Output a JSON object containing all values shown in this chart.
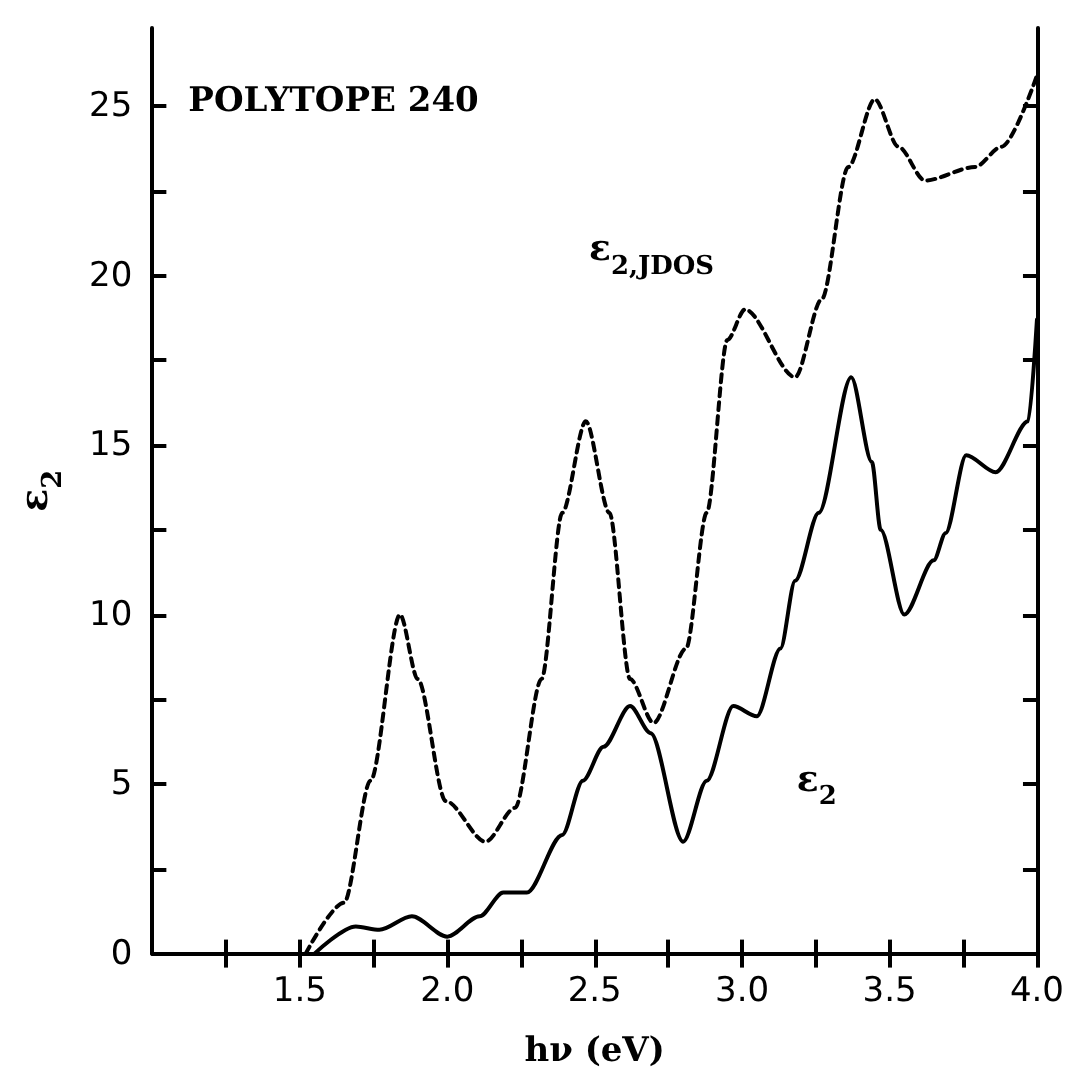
{
  "chart_data": {
    "type": "line",
    "xlabel": "hν (eV)",
    "ylabel": "ε$_{2}$",
    "annotations": [
      "POLYTOPE 240"
    ],
    "xlim": [
      1,
      4
    ],
    "ylim": [
      0,
      27.3
    ],
    "xticks": [
      {
        "value": 1.25,
        "label": null
      },
      {
        "value": 1.5,
        "label": "1.5"
      },
      {
        "value": 1.75,
        "label": null
      },
      {
        "value": 2,
        "label": "2.0"
      },
      {
        "value": 2.25,
        "label": null
      },
      {
        "value": 2.5,
        "label": "2.5"
      },
      {
        "value": 2.75,
        "label": null
      },
      {
        "value": 3,
        "label": "3.0"
      },
      {
        "value": 3.25,
        "label": null
      },
      {
        "value": 3.5,
        "label": "3.5"
      },
      {
        "value": 3.75,
        "label": null
      },
      {
        "value": 4,
        "label": "4.0"
      }
    ],
    "yticks": [
      0,
      {
        "value": 2.5,
        "label": null
      },
      5,
      {
        "value": 7.5,
        "label": null
      },
      10,
      {
        "value": 12.5,
        "label": null
      },
      15,
      {
        "value": 17.5,
        "label": null
      },
      20,
      {
        "value": 22.5,
        "label": null
      },
      25
    ],
    "grid": false,
    "legend": false,
    "marker": "none",
    "series": [
      {
        "name": "ε$_{2,JDOS}$",
        "color": "#000000",
        "line_style": "dashed",
        "x": [
          1.52,
          1.65,
          1.74,
          1.84,
          1.9,
          1.995,
          2.13,
          2.23,
          2.32,
          2.39,
          2.47,
          2.55,
          2.62,
          2.7,
          2.81,
          2.88,
          2.95,
          3.01,
          3.18,
          3.27,
          3.36,
          3.45,
          3.53,
          3.62,
          3.79,
          3.88,
          4.0
        ],
        "values": [
          0,
          1.5,
          5.1,
          10.0,
          8.1,
          4.5,
          3.3,
          4.3,
          8.1,
          13.0,
          15.7,
          13.0,
          8.1,
          6.8,
          9.0,
          13.0,
          18.1,
          19.0,
          17.0,
          19.3,
          23.2,
          25.2,
          23.8,
          22.8,
          23.2,
          23.8,
          25.9
        ]
      },
      {
        "name": "ε$_{2}$",
        "color": "#000000",
        "line_style": "solid",
        "x": [
          1.55,
          1.69,
          1.77,
          1.88,
          2.0,
          2.11,
          2.19,
          2.27,
          2.39,
          2.46,
          2.53,
          2.62,
          2.69,
          2.8,
          2.88,
          2.97,
          3.05,
          3.13,
          3.18,
          3.26,
          3.37,
          3.44,
          3.47,
          3.55,
          3.65,
          3.69,
          3.76,
          3.86,
          3.97,
          4.0
        ],
        "values": [
          0,
          0.8,
          0.7,
          1.1,
          0.5,
          1.1,
          1.8,
          1.8,
          3.5,
          5.1,
          6.1,
          7.3,
          6.5,
          3.3,
          5.1,
          7.3,
          7.0,
          9.0,
          11.0,
          13.0,
          17.0,
          14.5,
          12.5,
          10.0,
          11.6,
          12.4,
          14.7,
          14.2,
          15.7,
          18.7
        ]
      }
    ]
  }
}
